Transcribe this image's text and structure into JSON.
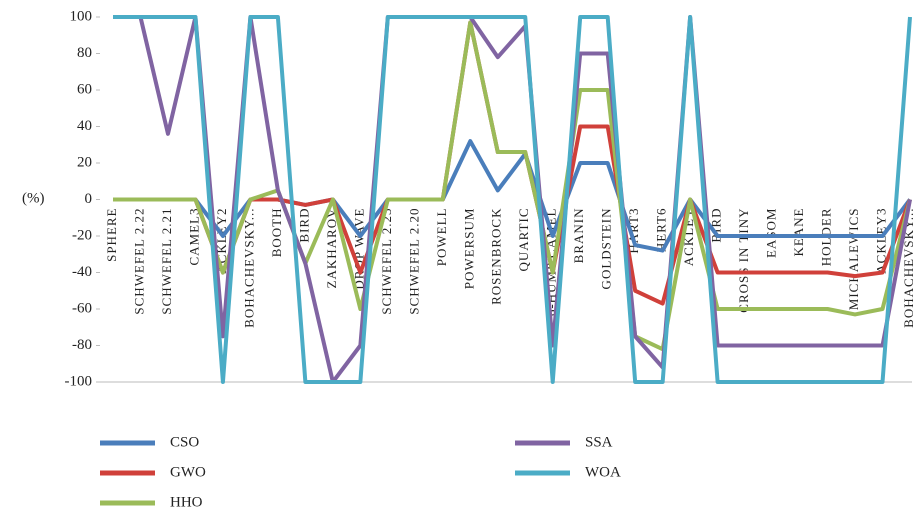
{
  "chart_data": {
    "type": "line",
    "y_label": "(%)",
    "categories": [
      "SPHERE",
      "SCHWEFEL 2.22",
      "SCHWEFEL 2.21",
      "CAMEL3",
      "ACKLEY2",
      "BOHACHEVSKY...",
      "BOOTH",
      "BIRD",
      "ZAKHAROV",
      "DROP WAVE",
      "SCHWEFEL 2.23",
      "SCHWEFEL 2.20",
      "POWELL",
      "POWERSUM",
      "ROSENBROCK",
      "QUARTIC",
      "6-HUMP CAMEL",
      "BRANIN",
      "GOLDSTEIN",
      "HART3",
      "HERT6",
      "ACKLEY",
      "BIRD",
      "CROSS IN TINY",
      "EASOM",
      "KEANE",
      "HOLDER",
      "MICHALEWICS",
      "ACKLEY3",
      "BOHACHEVSKY..."
    ],
    "series": [
      {
        "name": "CSO",
        "color": "#4a7ebb",
        "values": [
          0,
          0,
          0,
          0,
          -20,
          0,
          0,
          -3,
          0,
          -20,
          0,
          0,
          0,
          32,
          5,
          25,
          -20,
          20,
          20,
          -25,
          -28,
          0,
          -20,
          -20,
          -20,
          -20,
          -20,
          -20,
          -20,
          0
        ]
      },
      {
        "name": "GWO",
        "color": "#d0403a",
        "values": [
          0,
          0,
          0,
          0,
          -40,
          0,
          0,
          -3,
          0,
          -40,
          0,
          0,
          0,
          97,
          26,
          26,
          -40,
          40,
          40,
          -50,
          -57,
          0,
          -40,
          -40,
          -40,
          -40,
          -40,
          -42,
          -40,
          0
        ]
      },
      {
        "name": "HHO",
        "color": "#9bbb59",
        "values": [
          0,
          0,
          0,
          0,
          -40,
          0,
          5,
          -35,
          0,
          -60,
          0,
          0,
          0,
          97,
          26,
          26,
          -40,
          60,
          60,
          -75,
          -82,
          0,
          -60,
          -60,
          -60,
          -60,
          -60,
          -63,
          -60,
          0
        ]
      },
      {
        "name": "SSA",
        "color": "#8064a2",
        "values": [
          100,
          100,
          36,
          100,
          -75,
          100,
          5,
          -35,
          -100,
          -80,
          100,
          100,
          100,
          100,
          78,
          95,
          -80,
          80,
          80,
          -75,
          -92,
          100,
          -80,
          -80,
          -80,
          -80,
          -80,
          -80,
          -80,
          0
        ]
      },
      {
        "name": "WOA",
        "color": "#4bacc6",
        "values": [
          100,
          100,
          100,
          100,
          -100,
          100,
          100,
          -100,
          -100,
          -100,
          100,
          100,
          100,
          100,
          100,
          100,
          -100,
          100,
          100,
          -100,
          -100,
          100,
          -100,
          -100,
          -100,
          -100,
          -100,
          -100,
          -100,
          100
        ]
      }
    ],
    "ylim": [
      -100,
      100
    ],
    "yticks": [
      -100,
      -80,
      -60,
      -40,
      -20,
      0,
      20,
      40,
      60,
      80,
      100
    ]
  }
}
